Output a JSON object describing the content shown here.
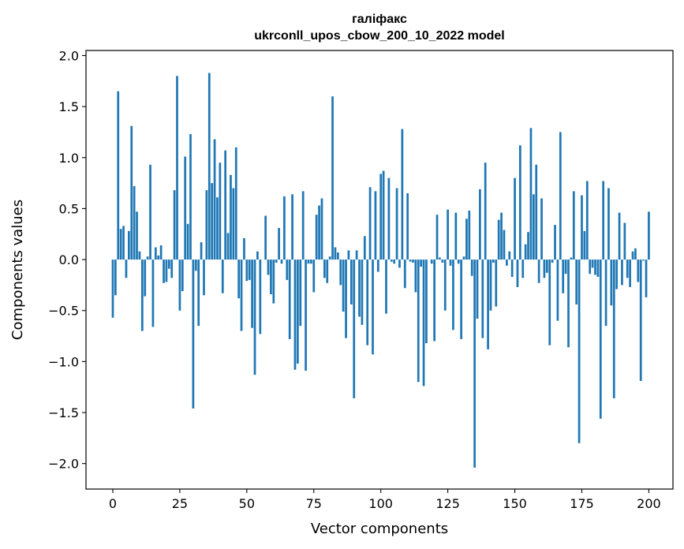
{
  "chart_data": {
    "type": "bar",
    "title": "галіфакс",
    "subtitle": "ukrconll_upos_cbow_200_10_2022 model",
    "xlabel": "Vector components",
    "ylabel": "Components values",
    "xlim": [
      -10,
      209
    ],
    "ylim": [
      -2.25,
      2.05
    ],
    "x_ticks": [
      0,
      25,
      50,
      75,
      100,
      125,
      150,
      175,
      200
    ],
    "x_tick_labels": [
      "0",
      "25",
      "50",
      "75",
      "100",
      "125",
      "150",
      "175",
      "200"
    ],
    "y_ticks": [
      -2.0,
      -1.5,
      -1.0,
      -0.5,
      0.0,
      0.5,
      1.0,
      1.5,
      2.0
    ],
    "y_tick_labels": [
      "−2.0",
      "−1.5",
      "−1.0",
      "−0.5",
      "0.0",
      "0.5",
      "1.0",
      "1.5",
      "2.0"
    ],
    "grid": false,
    "bar_color": "#1f77b4",
    "values": [
      -0.57,
      -0.35,
      1.65,
      0.3,
      0.33,
      -0.18,
      0.28,
      1.31,
      0.72,
      0.47,
      0.08,
      -0.7,
      -0.36,
      0.03,
      0.93,
      -0.66,
      0.12,
      0.04,
      0.14,
      -0.23,
      -0.22,
      -0.09,
      -0.18,
      0.68,
      1.8,
      -0.5,
      -0.31,
      1.01,
      0.35,
      1.23,
      -1.46,
      -0.11,
      -0.65,
      0.17,
      -0.35,
      0.68,
      1.83,
      0.75,
      1.18,
      0.61,
      0.95,
      -0.33,
      1.07,
      0.26,
      0.83,
      0.7,
      1.1,
      -0.38,
      -0.7,
      0.21,
      -0.21,
      -0.2,
      -0.67,
      -1.13,
      0.08,
      -0.73,
      0.0,
      0.43,
      -0.15,
      -0.34,
      -0.43,
      -0.03,
      0.31,
      -0.04,
      0.62,
      -0.2,
      -0.78,
      0.64,
      -1.08,
      -1.02,
      -0.65,
      0.67,
      -1.09,
      -0.04,
      -0.04,
      -0.32,
      0.44,
      0.53,
      0.6,
      -0.18,
      -0.23,
      0.03,
      1.6,
      0.12,
      0.07,
      -0.25,
      -0.51,
      -0.77,
      0.09,
      -0.44,
      -1.36,
      0.09,
      -0.56,
      -0.64,
      0.23,
      -0.84,
      0.71,
      -0.93,
      0.67,
      -0.12,
      0.84,
      0.87,
      -0.53,
      0.8,
      -0.02,
      -0.04,
      0.7,
      -0.08,
      1.28,
      -0.28,
      0.65,
      -0.02,
      -0.03,
      -0.32,
      -1.2,
      -0.07,
      -1.24,
      -0.82,
      0.0,
      -0.04,
      -0.8,
      0.44,
      0.02,
      -0.03,
      -0.5,
      0.49,
      -0.06,
      -0.69,
      0.46,
      -0.04,
      -0.78,
      0.03,
      0.4,
      0.48,
      -0.16,
      -2.04,
      -0.58,
      0.69,
      -0.77,
      0.95,
      -0.88,
      -0.5,
      -0.03,
      -0.46,
      0.39,
      0.46,
      0.29,
      -0.06,
      0.08,
      -0.17,
      0.8,
      -0.27,
      1.12,
      -0.18,
      0.15,
      0.27,
      1.29,
      0.64,
      0.93,
      -0.23,
      0.6,
      -0.18,
      -0.13,
      -0.84,
      -0.03,
      0.34,
      -0.6,
      1.25,
      -0.33,
      -0.14,
      -0.86,
      0.02,
      0.67,
      -0.44,
      -1.8,
      0.63,
      0.28,
      0.77,
      -0.14,
      -0.08,
      -0.15,
      -0.17,
      -1.56,
      0.77,
      -0.65,
      0.7,
      -0.45,
      -1.36,
      -0.29,
      0.46,
      -0.25,
      0.36,
      -0.18,
      -0.27,
      0.08,
      0.11,
      -0.22,
      -1.19,
      -0.01,
      -0.37,
      0.47
    ]
  }
}
